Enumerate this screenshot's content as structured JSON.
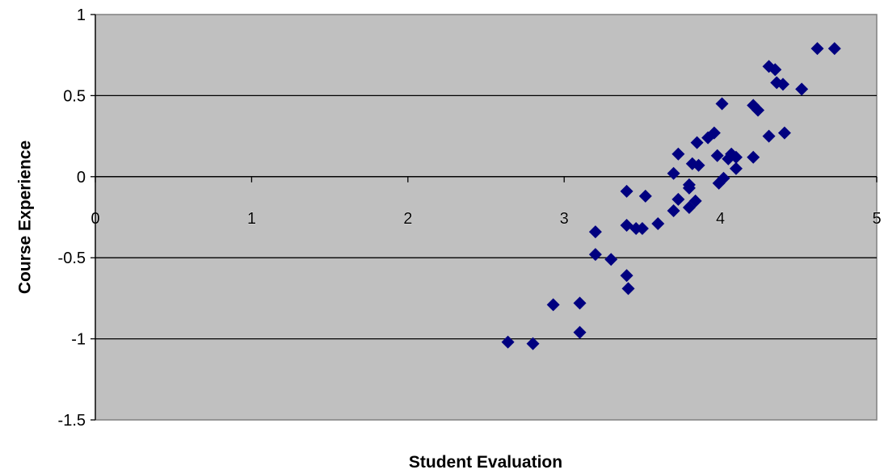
{
  "chart_data": {
    "type": "scatter",
    "title": "",
    "xlabel": "Student Evaluation",
    "ylabel": "Course Experience",
    "xlim": [
      0,
      5
    ],
    "ylim": [
      -1.5,
      1
    ],
    "x_ticks": [
      0,
      1,
      2,
      3,
      4,
      5
    ],
    "y_ticks": [
      -1.5,
      -1,
      -0.5,
      0,
      0.5,
      1
    ],
    "x_tick_labels": [
      "0",
      "1",
      "2",
      "3",
      "4",
      "5"
    ],
    "y_tick_labels": [
      "-1.5",
      "-1",
      "-0.5",
      "0",
      "0.5",
      "1"
    ],
    "grid": "horizontal",
    "legend": "none",
    "plot_background": "#c0c0c0",
    "marker": "diamond",
    "marker_color": "#000080",
    "points": [
      {
        "x": 2.64,
        "y": -1.02
      },
      {
        "x": 2.8,
        "y": -1.03
      },
      {
        "x": 2.93,
        "y": -0.79
      },
      {
        "x": 3.1,
        "y": -0.78
      },
      {
        "x": 3.1,
        "y": -0.96
      },
      {
        "x": 3.2,
        "y": -0.34
      },
      {
        "x": 3.2,
        "y": -0.48
      },
      {
        "x": 3.3,
        "y": -0.51
      },
      {
        "x": 3.4,
        "y": -0.09
      },
      {
        "x": 3.4,
        "y": -0.3
      },
      {
        "x": 3.4,
        "y": -0.61
      },
      {
        "x": 3.41,
        "y": -0.69
      },
      {
        "x": 3.5,
        "y": -0.32
      },
      {
        "x": 3.46,
        "y": -0.32
      },
      {
        "x": 3.52,
        "y": -0.12
      },
      {
        "x": 3.6,
        "y": -0.29
      },
      {
        "x": 3.7,
        "y": 0.02
      },
      {
        "x": 3.7,
        "y": -0.21
      },
      {
        "x": 3.73,
        "y": 0.14
      },
      {
        "x": 3.73,
        "y": -0.14
      },
      {
        "x": 3.8,
        "y": -0.05
      },
      {
        "x": 3.8,
        "y": -0.07
      },
      {
        "x": 3.8,
        "y": -0.19
      },
      {
        "x": 3.82,
        "y": 0.08
      },
      {
        "x": 3.84,
        "y": -0.15
      },
      {
        "x": 3.85,
        "y": 0.21
      },
      {
        "x": 3.86,
        "y": 0.07
      },
      {
        "x": 3.92,
        "y": 0.24
      },
      {
        "x": 3.96,
        "y": 0.27
      },
      {
        "x": 3.98,
        "y": 0.13
      },
      {
        "x": 3.99,
        "y": -0.04
      },
      {
        "x": 4.01,
        "y": 0.45
      },
      {
        "x": 4.02,
        "y": -0.01
      },
      {
        "x": 4.05,
        "y": 0.11
      },
      {
        "x": 4.07,
        "y": 0.14
      },
      {
        "x": 4.1,
        "y": 0.12
      },
      {
        "x": 4.1,
        "y": 0.05
      },
      {
        "x": 4.21,
        "y": 0.44
      },
      {
        "x": 4.24,
        "y": 0.41
      },
      {
        "x": 4.21,
        "y": 0.12
      },
      {
        "x": 4.31,
        "y": 0.68
      },
      {
        "x": 4.35,
        "y": 0.66
      },
      {
        "x": 4.36,
        "y": 0.58
      },
      {
        "x": 4.4,
        "y": 0.57
      },
      {
        "x": 4.31,
        "y": 0.25
      },
      {
        "x": 4.41,
        "y": 0.27
      },
      {
        "x": 4.52,
        "y": 0.54
      },
      {
        "x": 4.62,
        "y": 0.79
      },
      {
        "x": 4.73,
        "y": 0.79
      }
    ]
  }
}
